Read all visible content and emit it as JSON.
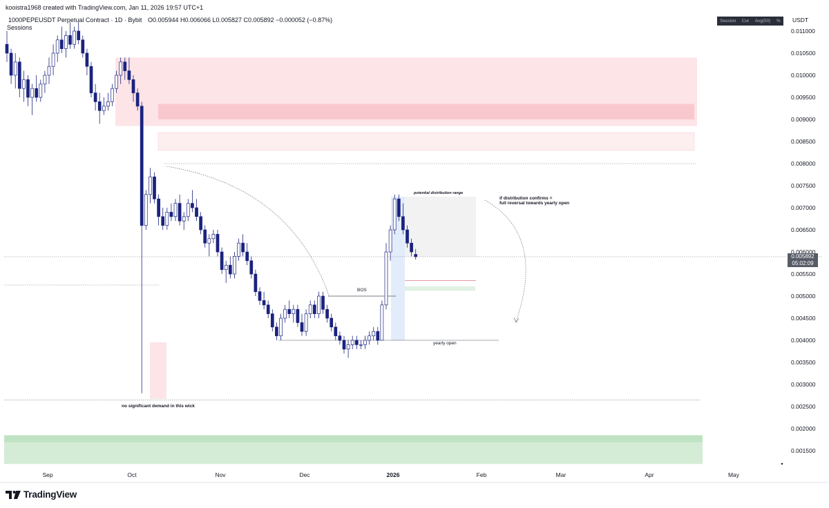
{
  "header": {
    "created_by": "kooistra1968 created with TradingView.com, Jan 11, 2026 19:57 UTC+1",
    "symbol_line": "1000PEPEUSDT Perpetual Contract · 1D · Bybit",
    "ohlc": "O0.005944  H0.006066  L0.005827  C0.005892  −0.000052 (−0.87%)",
    "indicator": "Sessions"
  },
  "toolbar": {
    "items": [
      "Session",
      "Cur",
      "Avg(50)",
      "%"
    ]
  },
  "currency": "USDT",
  "last_price": {
    "value": "0.005892",
    "countdown": "05:02:09",
    "bg": "#575b66"
  },
  "branding": {
    "logo": "TradingView"
  },
  "annotations": {
    "bos": "BOS",
    "yearly_open": "yearly open",
    "no_demand": "no significant demand in this wick",
    "distribution_range": "potential distribution range",
    "reversal_note_1": "if distribution confirms =",
    "reversal_note_2": "full reversal towards yearly open"
  },
  "colors": {
    "up": "#ffffff",
    "down": "#1a237e",
    "wick": "#1a237e",
    "supply_zone": "#fde4e6",
    "supply_core": "#f9c8ce",
    "demand_zone": "#d4ecd6",
    "demand_edge": "#bfe3c3"
  },
  "chart_data": {
    "type": "candlestick",
    "symbol": "1000PEPEUSDT",
    "interval": "1D",
    "x_ticks": [
      "Sep",
      "Oct",
      "Nov",
      "Dec",
      "2026",
      "Feb",
      "Mar",
      "Apr",
      "May"
    ],
    "y_ticks": [
      "0.011000",
      "0.010500",
      "0.010000",
      "0.009500",
      "0.009000",
      "0.008500",
      "0.008000",
      "0.007500",
      "0.007000",
      "0.006500",
      "0.006000",
      "0.005500",
      "0.005000",
      "0.004500",
      "0.004000",
      "0.003500",
      "0.003000",
      "0.002500",
      "0.002000",
      "0.001500"
    ],
    "ylim": [
      0.0012,
      0.0115
    ],
    "candles": [
      [
        0.0107,
        0.011,
        0.0103,
        0.0105
      ],
      [
        0.0105,
        0.0106,
        0.0098,
        0.01
      ],
      [
        0.01,
        0.0105,
        0.0097,
        0.0103
      ],
      [
        0.0103,
        0.0104,
        0.0095,
        0.0097
      ],
      [
        0.0097,
        0.0101,
        0.0094,
        0.0099
      ],
      [
        0.0099,
        0.01,
        0.0093,
        0.0095
      ],
      [
        0.0095,
        0.0098,
        0.0091,
        0.0097
      ],
      [
        0.0097,
        0.01,
        0.0094,
        0.0095
      ],
      [
        0.0095,
        0.0099,
        0.0094,
        0.0098
      ],
      [
        0.0098,
        0.0101,
        0.0096,
        0.01
      ],
      [
        0.01,
        0.0104,
        0.0098,
        0.0102
      ],
      [
        0.0102,
        0.0107,
        0.01,
        0.0105
      ],
      [
        0.0105,
        0.0109,
        0.0103,
        0.0108
      ],
      [
        0.0108,
        0.0111,
        0.0105,
        0.0106
      ],
      [
        0.0106,
        0.011,
        0.0104,
        0.0109
      ],
      [
        0.0109,
        0.0112,
        0.0106,
        0.0107
      ],
      [
        0.0107,
        0.0111,
        0.0106,
        0.011
      ],
      [
        0.011,
        0.0112,
        0.0107,
        0.0108
      ],
      [
        0.0108,
        0.0109,
        0.0104,
        0.0105
      ],
      [
        0.0105,
        0.0106,
        0.01,
        0.0102
      ],
      [
        0.0102,
        0.0103,
        0.0095,
        0.0096
      ],
      [
        0.0096,
        0.0098,
        0.0092,
        0.0094
      ],
      [
        0.0094,
        0.0096,
        0.0089,
        0.0092
      ],
      [
        0.0092,
        0.0095,
        0.0091,
        0.0093
      ],
      [
        0.0093,
        0.0096,
        0.0092,
        0.0094
      ],
      [
        0.0094,
        0.0098,
        0.0093,
        0.0097
      ],
      [
        0.0097,
        0.0101,
        0.0096,
        0.01
      ],
      [
        0.01,
        0.0104,
        0.0098,
        0.0103
      ],
      [
        0.0103,
        0.0104,
        0.0099,
        0.0101
      ],
      [
        0.0101,
        0.0104,
        0.0098,
        0.0099
      ],
      [
        0.0099,
        0.01,
        0.0094,
        0.0096
      ],
      [
        0.0096,
        0.0097,
        0.0092,
        0.0093
      ],
      [
        0.0093,
        0.0094,
        0.0028,
        0.0066
      ],
      [
        0.0066,
        0.0074,
        0.0065,
        0.0073
      ],
      [
        0.0073,
        0.0079,
        0.0071,
        0.0077
      ],
      [
        0.0077,
        0.0078,
        0.0071,
        0.0072
      ],
      [
        0.0072,
        0.0073,
        0.0066,
        0.0068
      ],
      [
        0.0068,
        0.007,
        0.0065,
        0.0066
      ],
      [
        0.0066,
        0.007,
        0.0065,
        0.0069
      ],
      [
        0.0069,
        0.0071,
        0.0067,
        0.0068
      ],
      [
        0.0068,
        0.0072,
        0.0067,
        0.0071
      ],
      [
        0.0071,
        0.0073,
        0.0066,
        0.0067
      ],
      [
        0.0067,
        0.0069,
        0.0065,
        0.0068
      ],
      [
        0.0068,
        0.0072,
        0.0067,
        0.0071
      ],
      [
        0.0071,
        0.0074,
        0.0069,
        0.007
      ],
      [
        0.007,
        0.0072,
        0.0067,
        0.0068
      ],
      [
        0.0068,
        0.0069,
        0.0064,
        0.0065
      ],
      [
        0.0065,
        0.0066,
        0.0061,
        0.0062
      ],
      [
        0.0062,
        0.0064,
        0.0059,
        0.0063
      ],
      [
        0.0063,
        0.0065,
        0.0062,
        0.0064
      ],
      [
        0.0064,
        0.0065,
        0.0059,
        0.006
      ],
      [
        0.006,
        0.0061,
        0.0055,
        0.0056
      ],
      [
        0.0056,
        0.0058,
        0.0053,
        0.0057
      ],
      [
        0.0057,
        0.0059,
        0.0054,
        0.0055
      ],
      [
        0.0055,
        0.006,
        0.0054,
        0.0059
      ],
      [
        0.0059,
        0.0063,
        0.0058,
        0.0062
      ],
      [
        0.0062,
        0.0064,
        0.0059,
        0.006
      ],
      [
        0.006,
        0.0062,
        0.0057,
        0.0058
      ],
      [
        0.0058,
        0.0059,
        0.0054,
        0.0055
      ],
      [
        0.0055,
        0.0056,
        0.005,
        0.0051
      ],
      [
        0.0051,
        0.0052,
        0.0048,
        0.0049
      ],
      [
        0.0049,
        0.0051,
        0.0047,
        0.0048
      ],
      [
        0.0048,
        0.0049,
        0.0045,
        0.0046
      ],
      [
        0.0046,
        0.0047,
        0.0042,
        0.0043
      ],
      [
        0.0043,
        0.0044,
        0.004,
        0.0041
      ],
      [
        0.0041,
        0.0046,
        0.004,
        0.0045
      ],
      [
        0.0045,
        0.0048,
        0.0044,
        0.0047
      ],
      [
        0.0047,
        0.0049,
        0.0045,
        0.0046
      ],
      [
        0.0046,
        0.0048,
        0.0044,
        0.0047
      ],
      [
        0.0047,
        0.0048,
        0.0043,
        0.0044
      ],
      [
        0.0044,
        0.0046,
        0.0041,
        0.0042
      ],
      [
        0.0042,
        0.0047,
        0.0041,
        0.0046
      ],
      [
        0.0046,
        0.0049,
        0.0045,
        0.0048
      ],
      [
        0.0048,
        0.0049,
        0.0045,
        0.0046
      ],
      [
        0.0046,
        0.0051,
        0.0045,
        0.005
      ],
      [
        0.005,
        0.0051,
        0.0046,
        0.0047
      ],
      [
        0.0047,
        0.0048,
        0.0044,
        0.0045
      ],
      [
        0.0045,
        0.0046,
        0.0042,
        0.0043
      ],
      [
        0.0043,
        0.0044,
        0.004,
        0.0041
      ],
      [
        0.0041,
        0.0042,
        0.0039,
        0.004
      ],
      [
        0.004,
        0.0041,
        0.0037,
        0.0038
      ],
      [
        0.0038,
        0.004,
        0.0036,
        0.0039
      ],
      [
        0.0039,
        0.0041,
        0.0038,
        0.004
      ],
      [
        0.004,
        0.0041,
        0.0038,
        0.0039
      ],
      [
        0.0039,
        0.004,
        0.0038,
        0.0039
      ],
      [
        0.0039,
        0.0041,
        0.0038,
        0.004
      ],
      [
        0.004,
        0.0042,
        0.0039,
        0.0041
      ],
      [
        0.0041,
        0.0043,
        0.004,
        0.0042
      ],
      [
        0.0042,
        0.0043,
        0.0039,
        0.004
      ],
      [
        0.004,
        0.0049,
        0.004,
        0.0048
      ],
      [
        0.0048,
        0.0062,
        0.0047,
        0.006
      ],
      [
        0.006,
        0.0066,
        0.0058,
        0.0065
      ],
      [
        0.0065,
        0.0073,
        0.0064,
        0.0072
      ],
      [
        0.0072,
        0.0073,
        0.0067,
        0.0068
      ],
      [
        0.0068,
        0.0071,
        0.0064,
        0.0065
      ],
      [
        0.0065,
        0.0066,
        0.0061,
        0.0062
      ],
      [
        0.0062,
        0.0063,
        0.0059,
        0.006
      ],
      [
        0.005944,
        0.006066,
        0.005827,
        0.005892
      ]
    ],
    "levels": {
      "bos": 0.005,
      "yearly_open": 0.004,
      "wick_low": 0.00265,
      "upper_dotted": 0.008,
      "range_low": 0.00535,
      "left_dotted": 0.00525
    },
    "zones": {
      "supply": [
        0.00885,
        0.0104
      ],
      "supply_core": [
        0.009,
        0.00935
      ],
      "supply_lower": [
        0.0083,
        0.0087
      ],
      "demand": [
        0.0012,
        0.00185
      ],
      "distribution": [
        0.0059,
        0.00725
      ]
    }
  }
}
